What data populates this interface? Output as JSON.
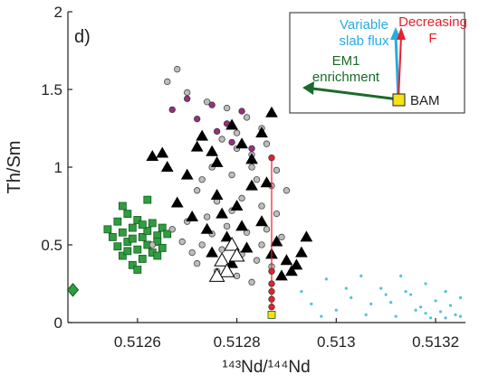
{
  "chart_data": {
    "type": "scatter",
    "y_label": "Th/Sm",
    "x_label": "¹⁴³Nd/¹⁴⁴Nd",
    "xlim": [
      0.51246,
      0.51326
    ],
    "xticks": [
      0.5126,
      0.5128,
      0.513,
      0.5132
    ],
    "ylim": [
      0,
      2
    ],
    "yticks": [
      0,
      0.5,
      1,
      1.5,
      2
    ],
    "annotations": {
      "panel": "d)",
      "slab_flux": [
        "Variable",
        "slab flux"
      ],
      "decreasing_f": [
        "Decreasing",
        "F"
      ],
      "em1": [
        "EM1",
        "enrichment"
      ],
      "bam": "BAM"
    },
    "series": [
      {
        "marker": "square",
        "color": "#2e9e3e",
        "x": [
          0.51254,
          0.51255,
          0.51256,
          0.51256,
          0.51257,
          0.51257,
          0.51258,
          0.51258,
          0.51259,
          0.51259,
          0.5126,
          0.5126,
          0.51261,
          0.51261,
          0.51262,
          0.51262,
          0.51263,
          0.51263,
          0.51264,
          0.51264,
          0.51265,
          0.51265,
          0.51266,
          0.51257,
          0.5126,
          0.51262,
          0.51258,
          0.51261,
          0.51264,
          0.51259
        ],
        "y": [
          0.6,
          0.55,
          0.65,
          0.49,
          0.58,
          0.43,
          0.7,
          0.52,
          0.61,
          0.37,
          0.47,
          0.66,
          0.55,
          0.41,
          0.59,
          0.5,
          0.64,
          0.45,
          0.56,
          0.52,
          0.61,
          0.48,
          0.57,
          0.75,
          0.34,
          0.79,
          0.46,
          0.63,
          0.43,
          0.54
        ]
      },
      {
        "marker": "diamond",
        "color": "#2e9e3e",
        "x": [
          0.51247
        ],
        "y": [
          0.21
        ]
      },
      {
        "marker": "circle",
        "color": "#bdbdbd",
        "x": [
          0.51268,
          0.51266,
          0.5127,
          0.51274,
          0.51278,
          0.51282,
          0.51285,
          0.51277,
          0.5128,
          0.51283,
          0.51275,
          0.51279,
          0.51284,
          0.51287,
          0.51272,
          0.51276,
          0.51281,
          0.51285,
          0.51288,
          0.5127,
          0.51274,
          0.51278,
          0.51282,
          0.51286,
          0.51289,
          0.51269,
          0.51273,
          0.51277,
          0.51281,
          0.51284,
          0.51287,
          0.51272,
          0.51276,
          0.5128,
          0.51283,
          0.51271,
          0.51267,
          0.51279,
          0.51283,
          0.51286,
          0.51288,
          0.5129,
          0.51285,
          0.51275,
          0.51263,
          0.51273,
          0.5128
        ],
        "y": [
          1.63,
          1.55,
          1.48,
          1.42,
          1.38,
          1.32,
          1.25,
          1.18,
          1.12,
          1.08,
          1.0,
          0.95,
          0.92,
          0.88,
          0.85,
          0.78,
          0.8,
          0.75,
          0.7,
          0.65,
          0.68,
          0.62,
          0.58,
          0.6,
          0.55,
          0.52,
          0.5,
          0.47,
          0.44,
          0.4,
          0.36,
          0.38,
          0.33,
          0.3,
          0.26,
          0.45,
          0.6,
          0.72,
          1.0,
          1.15,
          0.98,
          0.85,
          0.5,
          0.57,
          0.5,
          0.92,
          1.22
        ]
      },
      {
        "marker": "circle",
        "color": "#9b2d7f",
        "x": [
          0.51267,
          0.5127,
          0.51272,
          0.51275,
          0.51278,
          0.51281,
          0.51276,
          0.51279,
          0.51283
        ],
        "y": [
          1.37,
          1.44,
          1.31,
          1.4,
          1.28,
          1.36,
          1.23,
          1.16,
          1.12
        ]
      },
      {
        "marker": "triangle",
        "color": "#000000",
        "x": [
          0.51263,
          0.51265,
          0.51266,
          0.5127,
          0.51272,
          0.51273,
          0.51275,
          0.51276,
          0.51279,
          0.51281,
          0.51283,
          0.51285,
          0.51287,
          0.51283,
          0.5128,
          0.51276,
          0.51274,
          0.51278,
          0.51282,
          0.51285,
          0.51288,
          0.5129,
          0.51291,
          0.51292,
          0.51289,
          0.51293,
          0.51294,
          0.51279,
          0.51275,
          0.51271,
          0.51268,
          0.51286,
          0.51281,
          0.51277,
          0.51287
        ],
        "y": [
          1.07,
          1.09,
          1.0,
          0.95,
          1.13,
          1.2,
          1.1,
          1.03,
          1.27,
          1.15,
          1.05,
          1.22,
          1.35,
          0.88,
          0.75,
          0.82,
          0.6,
          0.55,
          0.48,
          0.65,
          0.52,
          0.4,
          0.33,
          0.37,
          0.3,
          0.45,
          0.55,
          0.38,
          0.45,
          0.68,
          0.77,
          0.9,
          0.62,
          0.7,
          0.44
        ]
      },
      {
        "marker": "open-triangle",
        "color": "#ffffff",
        "x": [
          0.51277,
          0.51278,
          0.51279,
          0.5128,
          0.51276
        ],
        "y": [
          0.4,
          0.33,
          0.5,
          0.43,
          0.3
        ]
      },
      {
        "marker": "dot",
        "color": "#4fc3d6",
        "x": [
          0.51293,
          0.51295,
          0.51298,
          0.513,
          0.51303,
          0.51306,
          0.51309,
          0.51311,
          0.51313,
          0.51315,
          0.51317,
          0.51318,
          0.5132,
          0.51321,
          0.51322,
          0.51323,
          0.51324,
          0.51325,
          0.51319,
          0.51316,
          0.51314,
          0.51312,
          0.51307,
          0.51302,
          0.51297,
          0.51325,
          0.51322,
          0.51318,
          0.5131,
          0.51305
        ],
        "y": [
          0.2,
          0.12,
          0.28,
          0.08,
          0.16,
          0.05,
          0.22,
          0.13,
          0.3,
          0.18,
          0.1,
          0.25,
          0.14,
          0.07,
          0.2,
          0.11,
          0.05,
          0.16,
          0.03,
          0.08,
          0.2,
          0.04,
          0.12,
          0.22,
          0.04,
          0.04,
          0.03,
          0.06,
          0.18,
          0.3
        ]
      },
      {
        "marker": "circle",
        "color": "#e8202a",
        "line": true,
        "x": [
          0.51287,
          0.51287,
          0.51287,
          0.51287,
          0.51287,
          0.51287
        ],
        "y": [
          1.06,
          0.33,
          0.25,
          0.2,
          0.15,
          0.1
        ]
      },
      {
        "marker": "square",
        "color": "#f7e017",
        "x": [
          0.51287
        ],
        "y": [
          0.05
        ]
      }
    ]
  }
}
